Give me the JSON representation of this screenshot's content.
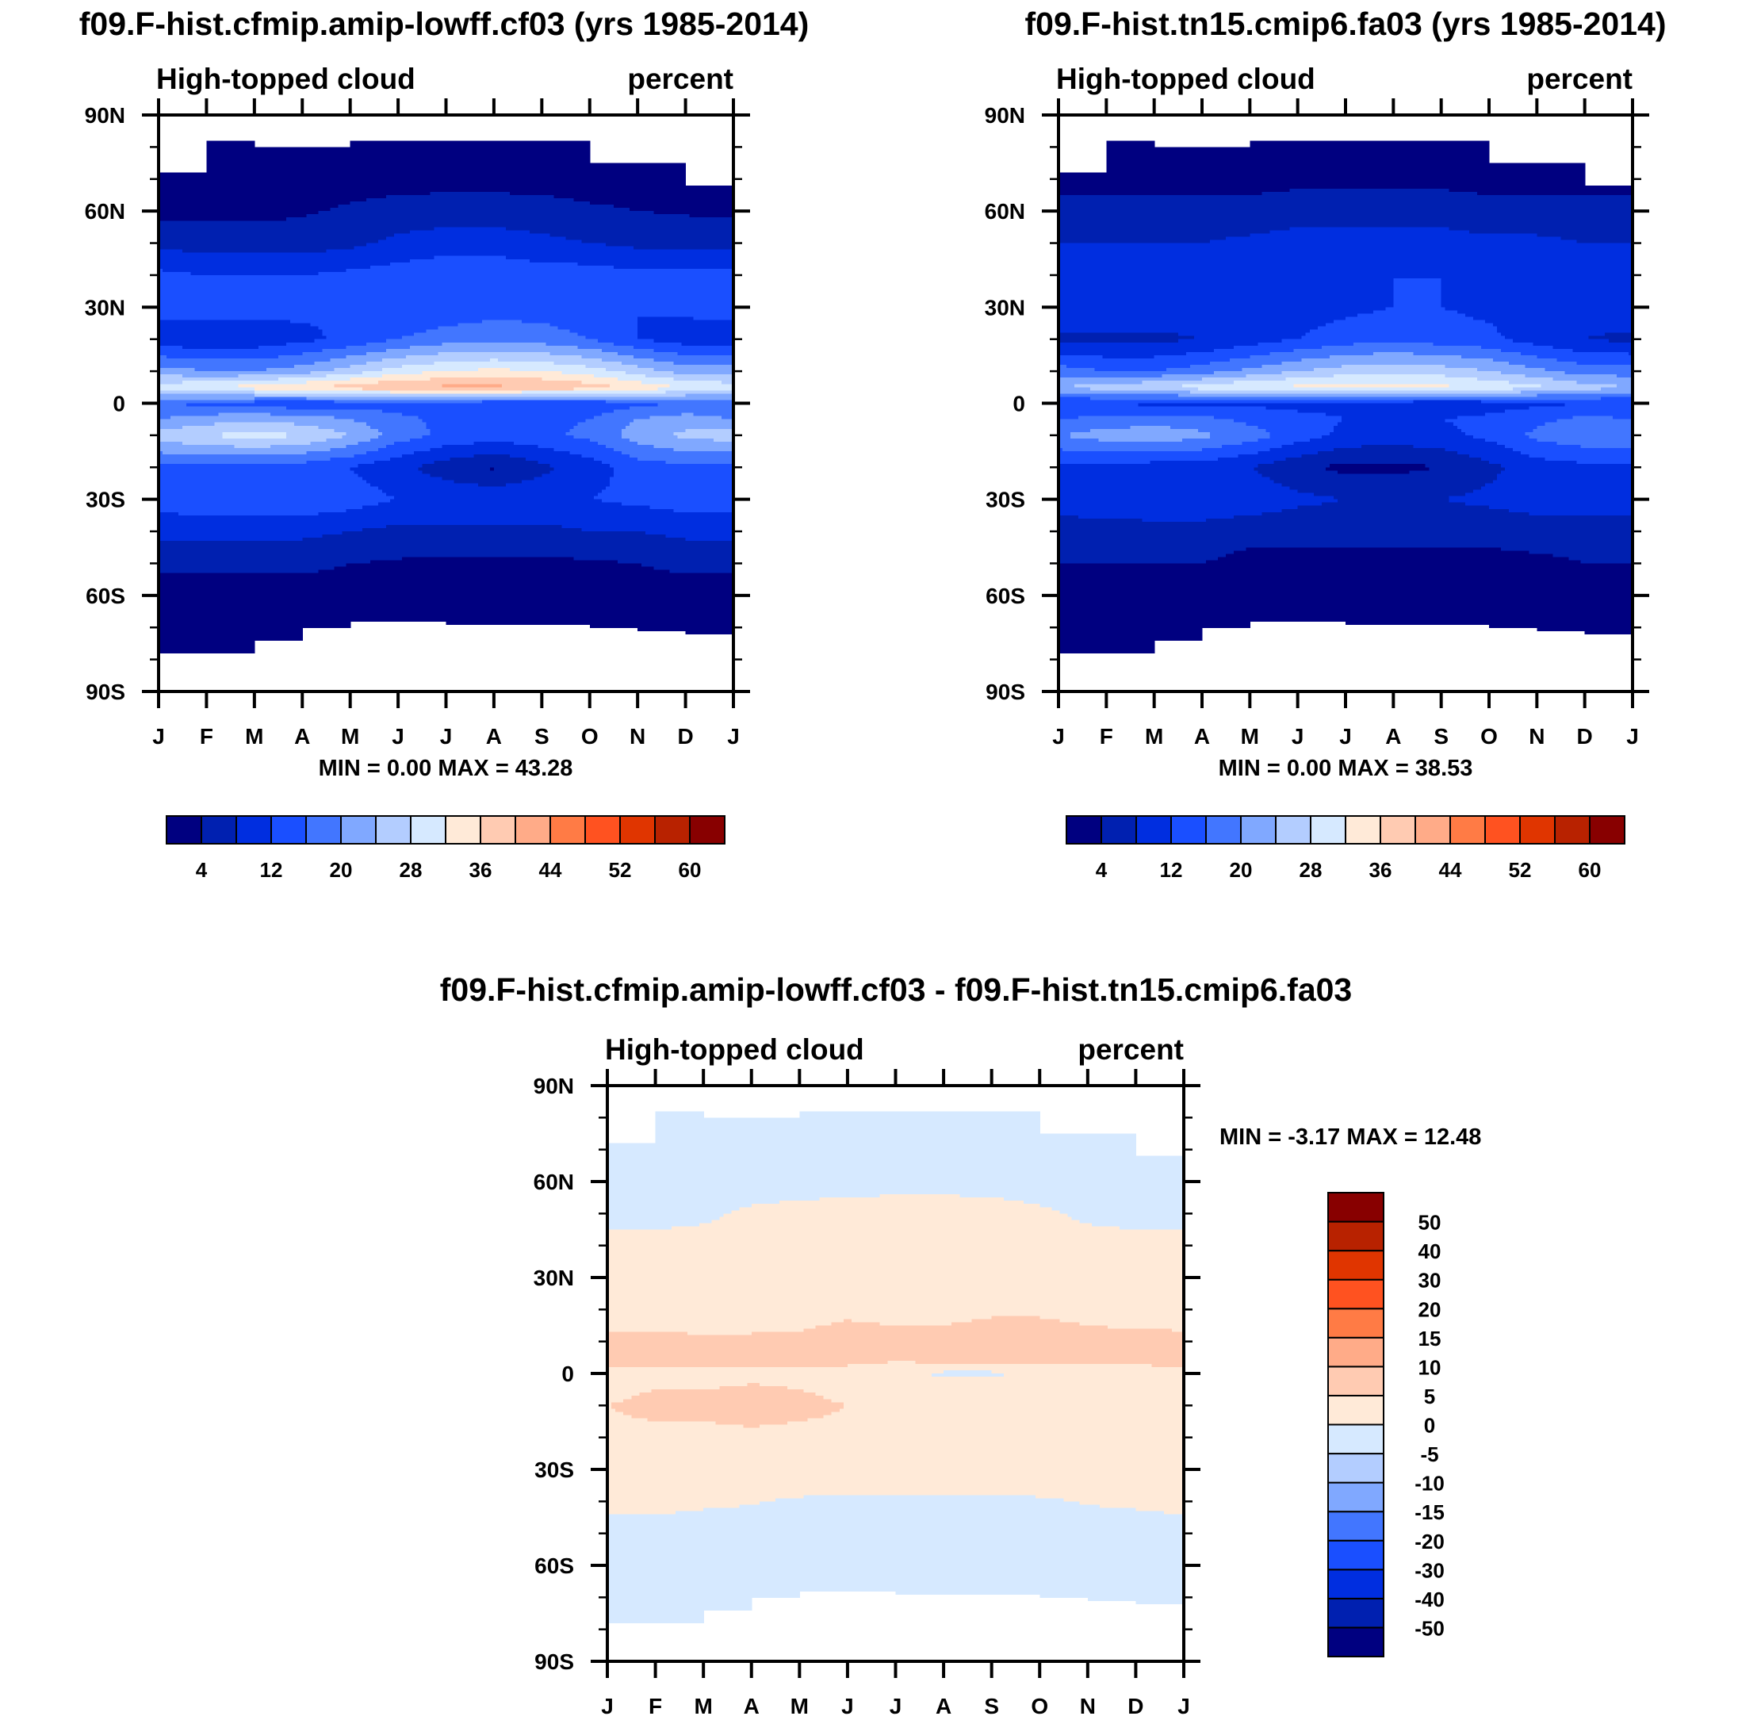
{
  "chart_data": {
    "type": "heatmap",
    "x_tick_labels": [
      "J",
      "F",
      "M",
      "A",
      "M",
      "J",
      "J",
      "A",
      "S",
      "O",
      "N",
      "D",
      "J"
    ],
    "y_tick_labels": [
      "90N",
      "60N",
      "30N",
      "0",
      "30S",
      "60S",
      "90S"
    ],
    "ylim": [
      -90,
      90
    ],
    "xlim_months": [
      0,
      12
    ],
    "grid_lats": [
      90,
      80,
      70,
      60,
      50,
      40,
      30,
      20,
      10,
      5,
      0,
      -5,
      -10,
      -20,
      -30,
      -40,
      -50,
      -60,
      -70,
      -80,
      -90
    ],
    "valid_north_limit_by_month": [
      72,
      82,
      80,
      80,
      82,
      82,
      82,
      82,
      82,
      75,
      75,
      68
    ],
    "valid_south_limit_by_month": [
      -78,
      -78,
      -74,
      -70,
      -67.5,
      -67.5,
      -69,
      -69,
      -69,
      -70,
      -71,
      -71.5
    ],
    "panels": [
      {
        "title": "f09.F-hist.cfmip.amip-lowff.cf03 (yrs 1985-2014)",
        "left_string": "High-topped cloud",
        "right_string": "percent",
        "min_max": "MIN =   0.00 MAX =  43.28",
        "levels": [
          4,
          8,
          12,
          16,
          20,
          24,
          28,
          32,
          36,
          40,
          44,
          48,
          52,
          56,
          60
        ],
        "colorbar_labels": [
          "4",
          "12",
          "20",
          "28",
          "36",
          "44",
          "52",
          "60"
        ],
        "grid": [
          2,
          2,
          2.5,
          [
            3,
            3,
            3,
            3.5,
            4.5,
            5.5,
            6,
            6,
            5.5,
            4.5,
            4,
            3.5,
            3
          ],
          [
            7,
            6,
            6,
            6,
            7,
            9,
            10,
            10,
            9,
            8,
            7,
            7,
            7
          ],
          [
            13,
            12,
            12,
            12,
            13,
            14,
            15,
            15,
            14,
            14,
            13,
            13,
            13
          ],
          [
            14,
            14,
            14,
            13,
            12,
            12,
            13,
            14,
            14,
            13,
            12,
            13,
            14
          ],
          [
            9,
            9,
            9,
            11,
            13,
            16,
            18,
            19,
            18,
            16,
            12,
            10,
            9
          ],
          [
            22,
            20,
            20,
            22,
            26,
            30,
            32,
            33,
            32,
            30,
            26,
            22,
            22
          ],
          [
            30,
            32,
            34,
            36,
            38,
            40,
            41,
            41,
            40,
            38,
            35,
            32,
            30
          ],
          [
            16,
            15,
            14,
            13,
            14,
            14,
            14,
            13,
            12,
            13,
            15,
            16,
            16
          ],
          [
            20,
            22,
            23,
            22,
            20,
            17,
            15,
            14,
            15,
            16,
            20,
            22,
            20
          ],
          [
            26,
            28,
            30,
            28,
            24,
            18,
            15,
            14,
            15,
            17,
            22,
            25,
            26
          ],
          [
            15,
            15,
            14,
            14,
            12,
            9,
            6,
            3.5,
            7,
            10,
            14,
            15,
            15
          ],
          [
            14,
            15,
            15,
            15,
            14,
            12,
            11,
            11,
            11,
            12,
            13,
            14,
            14
          ],
          [
            9,
            9,
            9,
            9,
            8,
            7,
            7,
            7,
            7,
            8,
            8,
            9,
            9
          ],
          [
            5,
            5,
            5,
            5,
            4,
            3.5,
            3,
            3,
            3,
            3.5,
            4,
            5,
            5
          ],
          2,
          1.5,
          1.5,
          1.5
        ]
      },
      {
        "title": "f09.F-hist.tn15.cmip6.fa03 (yrs 1985-2014)",
        "left_string": "High-topped cloud",
        "right_string": "percent",
        "min_max": "MIN =   0.00 MAX =  38.53",
        "levels": [
          4,
          8,
          12,
          16,
          20,
          24,
          28,
          32,
          36,
          40,
          44,
          48,
          52,
          56,
          60
        ],
        "colorbar_labels": [
          "4",
          "12",
          "20",
          "28",
          "36",
          "44",
          "52",
          "60"
        ],
        "grid": [
          2,
          2,
          3,
          [
            5,
            5,
            5,
            5,
            5,
            6,
            6,
            6,
            6,
            5,
            5,
            5,
            5
          ],
          [
            8,
            8,
            8,
            8,
            9,
            10,
            10,
            10,
            10,
            9,
            9,
            8,
            8
          ],
          [
            11,
            11,
            11,
            11,
            12,
            12,
            12,
            12,
            12,
            11,
            11,
            11,
            11
          ],
          [
            11,
            11,
            11,
            11,
            10,
            10,
            11,
            12,
            12,
            11,
            10,
            10,
            11
          ],
          [
            7,
            7,
            7,
            8,
            10,
            12,
            14,
            15,
            14,
            13,
            10,
            8,
            7
          ],
          [
            18,
            16,
            16,
            18,
            21,
            24,
            26,
            27,
            26,
            24,
            21,
            18,
            18
          ],
          [
            24,
            26,
            28,
            30,
            32,
            33,
            34,
            34,
            33,
            31,
            29,
            26,
            24
          ],
          [
            12,
            12,
            11,
            11,
            11,
            11,
            11,
            10,
            9,
            10,
            11,
            12,
            12
          ],
          [
            16,
            17,
            18,
            17,
            15,
            13,
            12,
            11,
            12,
            13,
            15,
            17,
            16
          ],
          [
            20,
            22,
            23,
            21,
            18,
            14,
            11,
            10,
            11,
            13,
            17,
            19,
            20
          ],
          [
            11,
            11,
            10,
            10,
            8,
            5,
            3,
            3,
            4,
            7,
            10,
            11,
            11
          ],
          [
            10,
            11,
            12,
            12,
            11,
            9,
            8,
            8,
            8,
            9,
            10,
            10,
            10
          ],
          [
            6,
            6,
            6,
            6,
            5,
            5,
            5,
            5,
            5,
            5,
            6,
            6,
            6
          ],
          [
            4,
            4,
            4,
            4,
            3,
            3,
            3,
            3,
            3,
            3,
            3,
            4,
            4
          ],
          2,
          2,
          2,
          2
        ]
      },
      {
        "title": "f09.F-hist.cfmip.amip-lowff.cf03 - f09.F-hist.tn15.cmip6.fa03",
        "left_string": "High-topped cloud",
        "right_string": "percent",
        "min_max": "MIN =  -3.17 MAX =  12.48",
        "levels": [
          -50,
          -40,
          -30,
          -20,
          -15,
          -10,
          -5,
          0,
          5,
          10,
          15,
          20,
          30,
          40,
          50
        ],
        "colorbar_labels": [
          "-50",
          "-40",
          "-30",
          "-20",
          "-15",
          "-10",
          "-5",
          "0",
          "5",
          "10",
          "15",
          "20",
          "30",
          "40",
          "50"
        ],
        "grid": [
          -2,
          -2,
          -2,
          -1.5,
          [
            -1,
            -1,
            -0.5,
            0.5,
            1,
            1.5,
            2,
            2,
            1.5,
            0.5,
            -0.5,
            -1,
            -1
          ],
          [
            1,
            1,
            1,
            1.5,
            2,
            2.5,
            3,
            3,
            2.5,
            1.5,
            1,
            1,
            1
          ],
          [
            2,
            2,
            2,
            2,
            2.5,
            3,
            3,
            3,
            3,
            3,
            2.5,
            2,
            2
          ],
          [
            3,
            3,
            3,
            3.5,
            4,
            4.5,
            4,
            4,
            4.5,
            4.5,
            4,
            3.5,
            3
          ],
          [
            6,
            6,
            5.5,
            5.5,
            5.5,
            6,
            6,
            6,
            6.5,
            6.5,
            6,
            6,
            6
          ],
          [
            9,
            9,
            9,
            8,
            7,
            7,
            6,
            8,
            9,
            8,
            6,
            6,
            9
          ],
          [
            3,
            3,
            2,
            3,
            3,
            3,
            2,
            -1,
            -1,
            2,
            3,
            3,
            3
          ],
          [
            4,
            5,
            5,
            6,
            5,
            4,
            3,
            3,
            3,
            3,
            4,
            5,
            4
          ],
          [
            5,
            6,
            6,
            7,
            6,
            5,
            4,
            3,
            3,
            3,
            4,
            5,
            5
          ],
          [
            4,
            4,
            4,
            4,
            4,
            4,
            3.5,
            3,
            3,
            3,
            3.5,
            4,
            4
          ],
          3,
          [
            1,
            1,
            0.5,
            0.2,
            -0.5,
            -1,
            -1,
            -1,
            -1,
            -0.5,
            0.2,
            0.5,
            1
          ],
          -1.5,
          -1.5,
          -1.5,
          -1,
          -1
        ]
      }
    ],
    "palette": [
      "#000080",
      "#0020b0",
      "#002ee0",
      "#1a4fff",
      "#4276ff",
      "#80a8ff",
      "#b3cdff",
      "#d6e9ff",
      "#ffead8",
      "#ffcbb2",
      "#ffab88",
      "#ff7b45",
      "#ff5220",
      "#e03500",
      "#b82200",
      "#880000"
    ]
  }
}
